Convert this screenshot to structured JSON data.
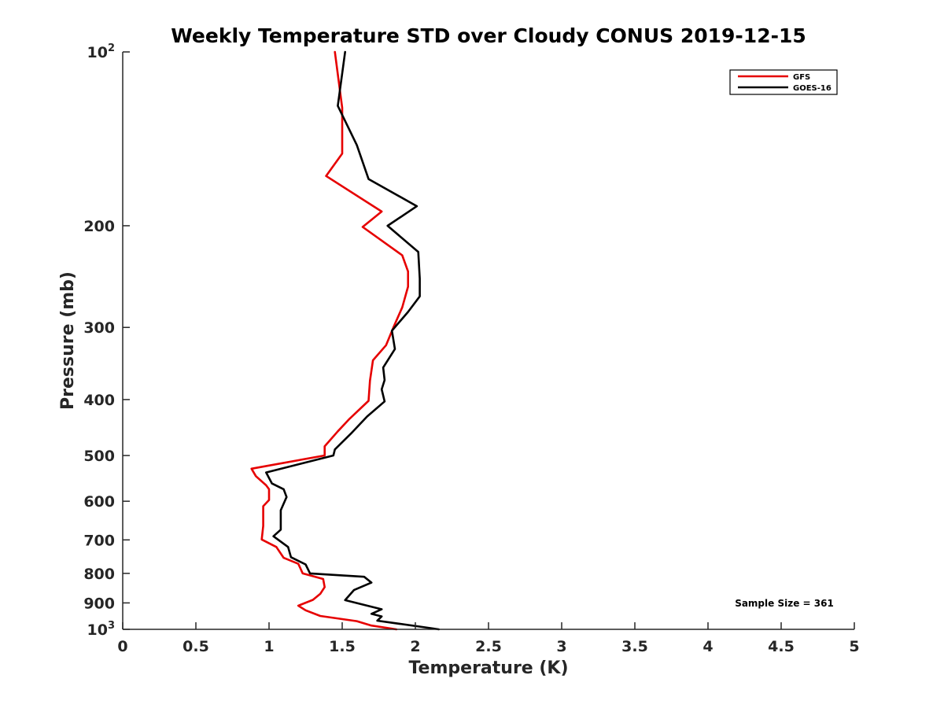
{
  "chart_data": {
    "type": "line",
    "title": "Weekly Temperature STD over Cloudy CONUS 2019-12-15",
    "xlabel": "Temperature (K)",
    "ylabel": "Pressure (mb)",
    "xlim": [
      0,
      5
    ],
    "ylim": [
      100,
      1000
    ],
    "yscale": "log",
    "yreversed": true,
    "grid": false,
    "legend_position": "top-right",
    "x_ticks": [
      "0",
      "0.5",
      "1",
      "1.5",
      "2",
      "2.5",
      "3",
      "3.5",
      "4",
      "4.5",
      "5"
    ],
    "y_ticks": [
      {
        "value": 100,
        "base": "10",
        "exp": "2"
      },
      {
        "value": 200,
        "label": "200"
      },
      {
        "value": 300,
        "label": "300"
      },
      {
        "value": 400,
        "label": "400"
      },
      {
        "value": 500,
        "label": "500"
      },
      {
        "value": 600,
        "label": "600"
      },
      {
        "value": 700,
        "label": "700"
      },
      {
        "value": 800,
        "label": "800"
      },
      {
        "value": 900,
        "label": "900"
      },
      {
        "value": 1000,
        "base": "10",
        "exp": "3"
      }
    ],
    "annotation": "Sample Size = 361",
    "series": [
      {
        "name": "GFS",
        "color": "#e60000",
        "points": [
          [
            1.45,
            100
          ],
          [
            1.5,
            125
          ],
          [
            1.5,
            150
          ],
          [
            1.39,
            164
          ],
          [
            1.77,
            189
          ],
          [
            1.64,
            201
          ],
          [
            1.91,
            225
          ],
          [
            1.95,
            240
          ],
          [
            1.95,
            255
          ],
          [
            1.91,
            277
          ],
          [
            1.85,
            300
          ],
          [
            1.8,
            322
          ],
          [
            1.71,
            342
          ],
          [
            1.69,
            371
          ],
          [
            1.68,
            402
          ],
          [
            1.55,
            432
          ],
          [
            1.47,
            454
          ],
          [
            1.38,
            482
          ],
          [
            1.38,
            500
          ],
          [
            0.88,
            527
          ],
          [
            0.91,
            543
          ],
          [
            0.98,
            563
          ],
          [
            1.0,
            572
          ],
          [
            1.0,
            597
          ],
          [
            0.96,
            612
          ],
          [
            0.96,
            662
          ],
          [
            0.95,
            699
          ],
          [
            1.05,
            720
          ],
          [
            1.1,
            752
          ],
          [
            1.2,
            770
          ],
          [
            1.23,
            800
          ],
          [
            1.37,
            818
          ],
          [
            1.38,
            845
          ],
          [
            1.35,
            868
          ],
          [
            1.3,
            889
          ],
          [
            1.2,
            910
          ],
          [
            1.25,
            927
          ],
          [
            1.35,
            948
          ],
          [
            1.6,
            968
          ],
          [
            1.7,
            985
          ],
          [
            1.87,
            1000
          ]
        ]
      },
      {
        "name": "GOES-16",
        "color": "#000000",
        "points": [
          [
            1.52,
            100
          ],
          [
            1.47,
            124
          ],
          [
            1.6,
            145
          ],
          [
            1.68,
            166
          ],
          [
            2.01,
            185
          ],
          [
            1.81,
            200
          ],
          [
            2.02,
            222
          ],
          [
            2.03,
            247
          ],
          [
            2.03,
            265
          ],
          [
            1.95,
            282
          ],
          [
            1.84,
            304
          ],
          [
            1.86,
            327
          ],
          [
            1.78,
            352
          ],
          [
            1.79,
            370
          ],
          [
            1.77,
            384
          ],
          [
            1.79,
            403
          ],
          [
            1.67,
            428
          ],
          [
            1.56,
            458
          ],
          [
            1.45,
            488
          ],
          [
            1.44,
            500
          ],
          [
            0.98,
            535
          ],
          [
            1.02,
            559
          ],
          [
            1.1,
            572
          ],
          [
            1.12,
            590
          ],
          [
            1.08,
            622
          ],
          [
            1.08,
            672
          ],
          [
            1.03,
            690
          ],
          [
            1.13,
            720
          ],
          [
            1.15,
            750
          ],
          [
            1.25,
            772
          ],
          [
            1.28,
            800
          ],
          [
            1.65,
            811
          ],
          [
            1.7,
            830
          ],
          [
            1.58,
            855
          ],
          [
            1.52,
            890
          ],
          [
            1.77,
            923
          ],
          [
            1.7,
            940
          ],
          [
            1.77,
            950
          ],
          [
            1.74,
            966
          ],
          [
            2.1,
            995
          ],
          [
            2.16,
            1000
          ]
        ]
      }
    ]
  }
}
